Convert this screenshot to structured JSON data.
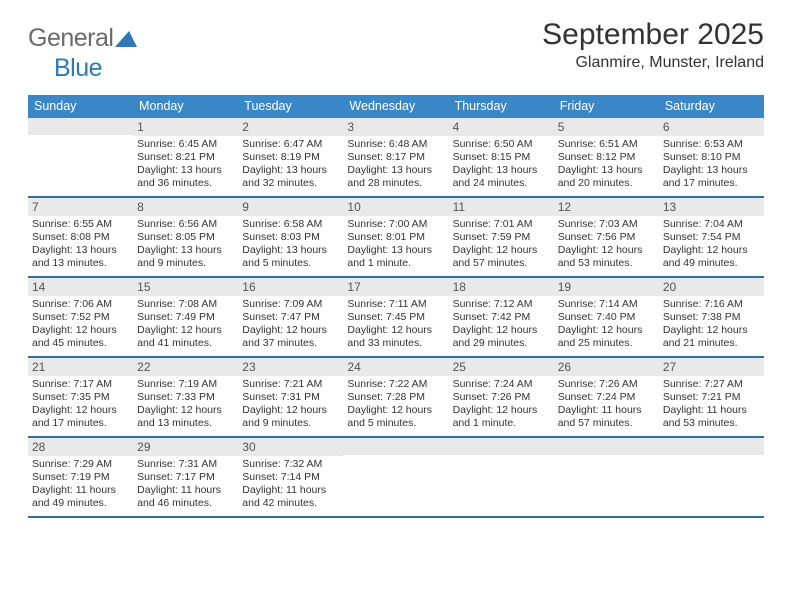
{
  "brand": {
    "word1": "General",
    "word2": "Blue",
    "logo_colors": {
      "gray": "#6b6b6b",
      "blue": "#2f78b7",
      "triangle": "#2f78b7"
    }
  },
  "title": "September 2025",
  "location": "Glanmire, Munster, Ireland",
  "colors": {
    "header_bg": "#3a87c7",
    "header_text": "#ffffff",
    "daynum_bg": "#e9e9e9",
    "week_border": "#2f6fa8",
    "text": "#333333",
    "background": "#ffffff"
  },
  "typography": {
    "title_fontsize": 30,
    "location_fontsize": 16,
    "dayhead_fontsize": 12.5,
    "daynum_fontsize": 12,
    "info_fontsize": 10.5
  },
  "day_headers": [
    "Sunday",
    "Monday",
    "Tuesday",
    "Wednesday",
    "Thursday",
    "Friday",
    "Saturday"
  ],
  "weeks": [
    [
      {
        "day": "",
        "sunrise": "",
        "sunset": "",
        "daylight": ""
      },
      {
        "day": "1",
        "sunrise": "Sunrise: 6:45 AM",
        "sunset": "Sunset: 8:21 PM",
        "daylight": "Daylight: 13 hours and 36 minutes."
      },
      {
        "day": "2",
        "sunrise": "Sunrise: 6:47 AM",
        "sunset": "Sunset: 8:19 PM",
        "daylight": "Daylight: 13 hours and 32 minutes."
      },
      {
        "day": "3",
        "sunrise": "Sunrise: 6:48 AM",
        "sunset": "Sunset: 8:17 PM",
        "daylight": "Daylight: 13 hours and 28 minutes."
      },
      {
        "day": "4",
        "sunrise": "Sunrise: 6:50 AM",
        "sunset": "Sunset: 8:15 PM",
        "daylight": "Daylight: 13 hours and 24 minutes."
      },
      {
        "day": "5",
        "sunrise": "Sunrise: 6:51 AM",
        "sunset": "Sunset: 8:12 PM",
        "daylight": "Daylight: 13 hours and 20 minutes."
      },
      {
        "day": "6",
        "sunrise": "Sunrise: 6:53 AM",
        "sunset": "Sunset: 8:10 PM",
        "daylight": "Daylight: 13 hours and 17 minutes."
      }
    ],
    [
      {
        "day": "7",
        "sunrise": "Sunrise: 6:55 AM",
        "sunset": "Sunset: 8:08 PM",
        "daylight": "Daylight: 13 hours and 13 minutes."
      },
      {
        "day": "8",
        "sunrise": "Sunrise: 6:56 AM",
        "sunset": "Sunset: 8:05 PM",
        "daylight": "Daylight: 13 hours and 9 minutes."
      },
      {
        "day": "9",
        "sunrise": "Sunrise: 6:58 AM",
        "sunset": "Sunset: 8:03 PM",
        "daylight": "Daylight: 13 hours and 5 minutes."
      },
      {
        "day": "10",
        "sunrise": "Sunrise: 7:00 AM",
        "sunset": "Sunset: 8:01 PM",
        "daylight": "Daylight: 13 hours and 1 minute."
      },
      {
        "day": "11",
        "sunrise": "Sunrise: 7:01 AM",
        "sunset": "Sunset: 7:59 PM",
        "daylight": "Daylight: 12 hours and 57 minutes."
      },
      {
        "day": "12",
        "sunrise": "Sunrise: 7:03 AM",
        "sunset": "Sunset: 7:56 PM",
        "daylight": "Daylight: 12 hours and 53 minutes."
      },
      {
        "day": "13",
        "sunrise": "Sunrise: 7:04 AM",
        "sunset": "Sunset: 7:54 PM",
        "daylight": "Daylight: 12 hours and 49 minutes."
      }
    ],
    [
      {
        "day": "14",
        "sunrise": "Sunrise: 7:06 AM",
        "sunset": "Sunset: 7:52 PM",
        "daylight": "Daylight: 12 hours and 45 minutes."
      },
      {
        "day": "15",
        "sunrise": "Sunrise: 7:08 AM",
        "sunset": "Sunset: 7:49 PM",
        "daylight": "Daylight: 12 hours and 41 minutes."
      },
      {
        "day": "16",
        "sunrise": "Sunrise: 7:09 AM",
        "sunset": "Sunset: 7:47 PM",
        "daylight": "Daylight: 12 hours and 37 minutes."
      },
      {
        "day": "17",
        "sunrise": "Sunrise: 7:11 AM",
        "sunset": "Sunset: 7:45 PM",
        "daylight": "Daylight: 12 hours and 33 minutes."
      },
      {
        "day": "18",
        "sunrise": "Sunrise: 7:12 AM",
        "sunset": "Sunset: 7:42 PM",
        "daylight": "Daylight: 12 hours and 29 minutes."
      },
      {
        "day": "19",
        "sunrise": "Sunrise: 7:14 AM",
        "sunset": "Sunset: 7:40 PM",
        "daylight": "Daylight: 12 hours and 25 minutes."
      },
      {
        "day": "20",
        "sunrise": "Sunrise: 7:16 AM",
        "sunset": "Sunset: 7:38 PM",
        "daylight": "Daylight: 12 hours and 21 minutes."
      }
    ],
    [
      {
        "day": "21",
        "sunrise": "Sunrise: 7:17 AM",
        "sunset": "Sunset: 7:35 PM",
        "daylight": "Daylight: 12 hours and 17 minutes."
      },
      {
        "day": "22",
        "sunrise": "Sunrise: 7:19 AM",
        "sunset": "Sunset: 7:33 PM",
        "daylight": "Daylight: 12 hours and 13 minutes."
      },
      {
        "day": "23",
        "sunrise": "Sunrise: 7:21 AM",
        "sunset": "Sunset: 7:31 PM",
        "daylight": "Daylight: 12 hours and 9 minutes."
      },
      {
        "day": "24",
        "sunrise": "Sunrise: 7:22 AM",
        "sunset": "Sunset: 7:28 PM",
        "daylight": "Daylight: 12 hours and 5 minutes."
      },
      {
        "day": "25",
        "sunrise": "Sunrise: 7:24 AM",
        "sunset": "Sunset: 7:26 PM",
        "daylight": "Daylight: 12 hours and 1 minute."
      },
      {
        "day": "26",
        "sunrise": "Sunrise: 7:26 AM",
        "sunset": "Sunset: 7:24 PM",
        "daylight": "Daylight: 11 hours and 57 minutes."
      },
      {
        "day": "27",
        "sunrise": "Sunrise: 7:27 AM",
        "sunset": "Sunset: 7:21 PM",
        "daylight": "Daylight: 11 hours and 53 minutes."
      }
    ],
    [
      {
        "day": "28",
        "sunrise": "Sunrise: 7:29 AM",
        "sunset": "Sunset: 7:19 PM",
        "daylight": "Daylight: 11 hours and 49 minutes."
      },
      {
        "day": "29",
        "sunrise": "Sunrise: 7:31 AM",
        "sunset": "Sunset: 7:17 PM",
        "daylight": "Daylight: 11 hours and 46 minutes."
      },
      {
        "day": "30",
        "sunrise": "Sunrise: 7:32 AM",
        "sunset": "Sunset: 7:14 PM",
        "daylight": "Daylight: 11 hours and 42 minutes."
      },
      {
        "day": "",
        "sunrise": "",
        "sunset": "",
        "daylight": ""
      },
      {
        "day": "",
        "sunrise": "",
        "sunset": "",
        "daylight": ""
      },
      {
        "day": "",
        "sunrise": "",
        "sunset": "",
        "daylight": ""
      },
      {
        "day": "",
        "sunrise": "",
        "sunset": "",
        "daylight": ""
      }
    ]
  ]
}
